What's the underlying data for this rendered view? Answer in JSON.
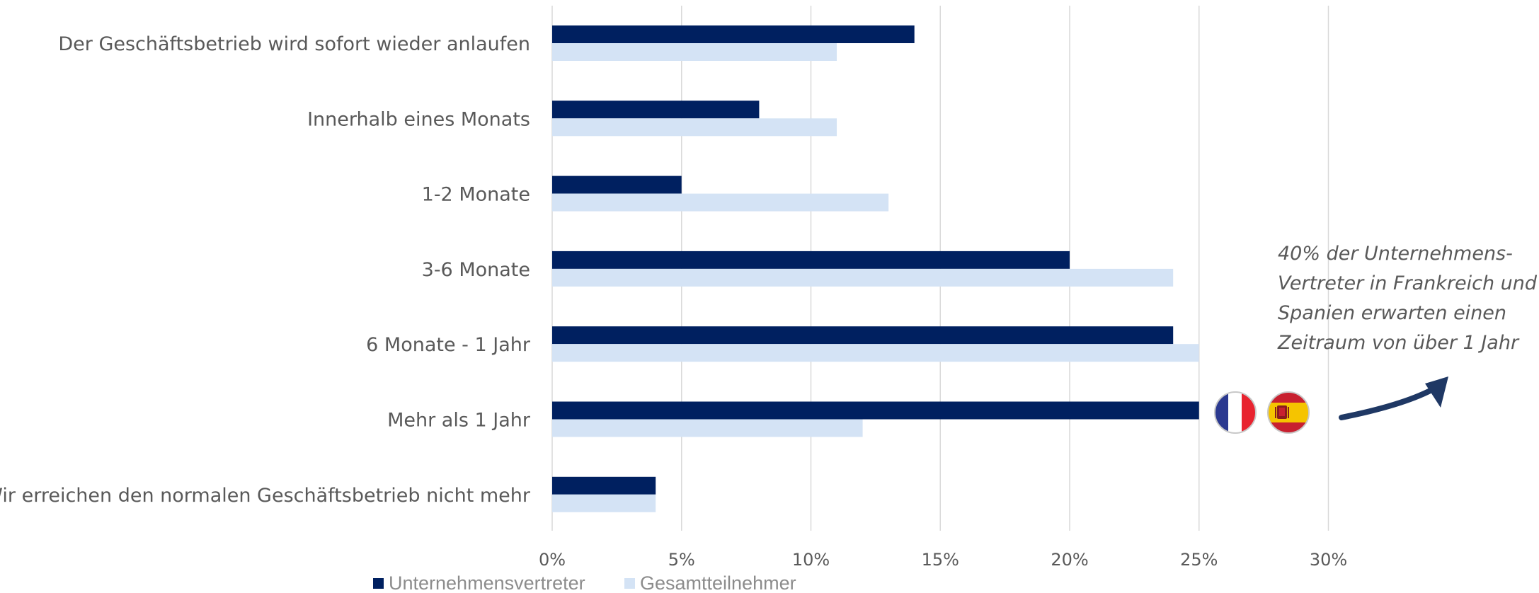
{
  "chart_data": {
    "type": "bar",
    "orientation": "horizontal",
    "categories": [
      "Der Geschäftsbetrieb wird sofort wieder anlaufen",
      "Innerhalb eines Monats",
      "1-2 Monate",
      "3-6 Monate",
      "6 Monate - 1 Jahr",
      "Mehr als 1 Jahr",
      "Wir erreichen den normalen Geschäftsbetrieb nicht mehr"
    ],
    "series": [
      {
        "name": "Unternehmensvertreter",
        "color": "#002060",
        "values": [
          14,
          8,
          5,
          20,
          24,
          25,
          4
        ]
      },
      {
        "name": "Gesamtteilnehmer",
        "color": "#d4e3f5",
        "values": [
          11,
          11,
          13,
          24,
          25,
          12,
          4
        ]
      }
    ],
    "xlim": [
      0,
      30
    ],
    "x_ticks": [
      "0%",
      "5%",
      "10%",
      "15%",
      "20%",
      "25%",
      "30%"
    ],
    "grid": "vertical",
    "legend_position": "bottom-left",
    "annotation": {
      "lines": [
        "40% der Unternehmens-",
        "Vertreter in Frankreich und",
        "Spanien erwarten einen",
        "Zeitraum von über 1 Jahr"
      ]
    },
    "flags": [
      "france-flag-icon",
      "spain-flag-icon"
    ],
    "arrow_color": "#1f3864"
  }
}
